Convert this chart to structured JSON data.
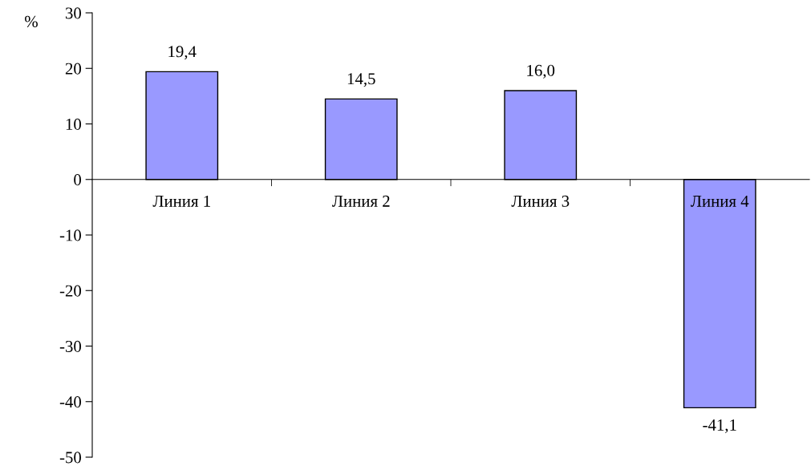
{
  "chart_data": {
    "type": "bar",
    "ylabel": "%",
    "categories": [
      "Линия 1",
      "Линия 2",
      "Линия 3",
      "Линия 4"
    ],
    "values": [
      19.4,
      14.5,
      16.0,
      -41.1
    ],
    "value_labels": [
      "19,4",
      "14,5",
      "16,0",
      "-41,1"
    ],
    "color": "#9999ff",
    "ylim": [
      -50,
      30
    ],
    "yticks": [
      -50,
      -40,
      -30,
      -20,
      -10,
      0,
      10,
      20,
      30
    ],
    "grid": false,
    "legend": false
  }
}
